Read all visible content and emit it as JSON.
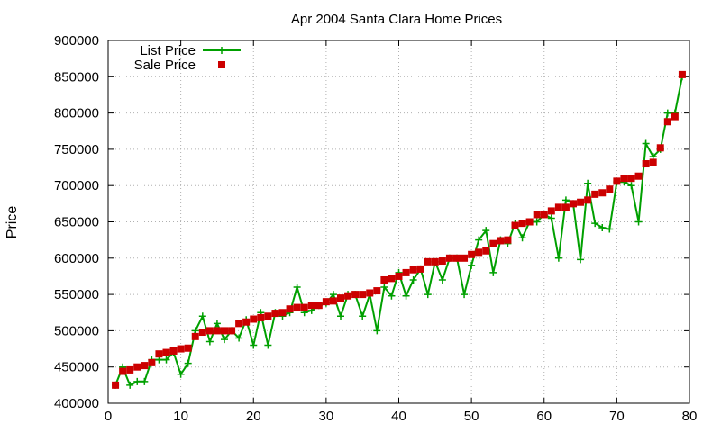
{
  "chart_data": {
    "type": "line",
    "title": "Apr 2004 Santa Clara Home Prices",
    "ylabel": "Price",
    "xlabel": "",
    "xlim": [
      0,
      80
    ],
    "ylim": [
      400000,
      900000
    ],
    "xticks": [
      0,
      10,
      20,
      30,
      40,
      50,
      60,
      70,
      80
    ],
    "yticks": [
      400000,
      450000,
      500000,
      550000,
      600000,
      650000,
      700000,
      750000,
      800000,
      850000,
      900000
    ],
    "grid": true,
    "legend_position": "top-left",
    "series": [
      {
        "name": "List Price",
        "style": "line-plus",
        "color": "#00a000",
        "x": [
          1,
          2,
          3,
          4,
          5,
          6,
          7,
          8,
          9,
          10,
          11,
          12,
          13,
          14,
          15,
          16,
          17,
          18,
          19,
          20,
          21,
          22,
          23,
          24,
          25,
          26,
          27,
          28,
          29,
          30,
          31,
          32,
          33,
          34,
          35,
          36,
          37,
          38,
          39,
          40,
          41,
          42,
          43,
          44,
          45,
          46,
          47,
          48,
          49,
          50,
          51,
          52,
          53,
          54,
          55,
          56,
          57,
          58,
          59,
          60,
          61,
          62,
          63,
          64,
          65,
          66,
          67,
          68,
          69,
          70,
          71,
          72,
          73,
          74,
          75,
          76,
          77,
          78,
          79
        ],
        "values": [
          425000,
          450000,
          425000,
          430000,
          430000,
          460000,
          460000,
          460000,
          470000,
          440000,
          455000,
          500000,
          520000,
          485000,
          510000,
          488000,
          500000,
          490000,
          515000,
          480000,
          525000,
          480000,
          525000,
          520000,
          525000,
          560000,
          525000,
          528000,
          535000,
          538000,
          550000,
          520000,
          550000,
          550000,
          520000,
          550000,
          500000,
          560000,
          548000,
          580000,
          548000,
          570000,
          585000,
          550000,
          595000,
          570000,
          600000,
          600000,
          550000,
          590000,
          625000,
          638000,
          580000,
          625000,
          620000,
          648000,
          628000,
          650000,
          650000,
          660000,
          655000,
          600000,
          680000,
          675000,
          598000,
          703000,
          648000,
          642000,
          640000,
          705000,
          705000,
          700000,
          650000,
          758000,
          740000,
          750000,
          800000,
          800000,
          850000
        ]
      },
      {
        "name": "Sale Price",
        "style": "square-points",
        "color": "#cc0000",
        "x": [
          1,
          2,
          3,
          4,
          5,
          6,
          7,
          8,
          9,
          10,
          11,
          12,
          13,
          14,
          15,
          16,
          17,
          18,
          19,
          20,
          21,
          22,
          23,
          24,
          25,
          26,
          27,
          28,
          29,
          30,
          31,
          32,
          33,
          34,
          35,
          36,
          37,
          38,
          39,
          40,
          41,
          42,
          43,
          44,
          45,
          46,
          47,
          48,
          49,
          50,
          51,
          52,
          53,
          54,
          55,
          56,
          57,
          58,
          59,
          60,
          61,
          62,
          63,
          64,
          65,
          66,
          67,
          68,
          69,
          70,
          71,
          72,
          73,
          74,
          75,
          76,
          77,
          78,
          79
        ],
        "values": [
          425000,
          444000,
          446000,
          450000,
          452000,
          456000,
          468000,
          470000,
          472000,
          475000,
          476000,
          492000,
          498000,
          500000,
          500000,
          500000,
          500000,
          510000,
          512000,
          516000,
          518000,
          520000,
          524000,
          525000,
          530000,
          532000,
          532000,
          535000,
          535000,
          540000,
          541000,
          545000,
          548000,
          550000,
          550000,
          552000,
          555000,
          570000,
          572000,
          575000,
          580000,
          584000,
          585000,
          595000,
          595000,
          596000,
          600000,
          600000,
          600000,
          605000,
          608000,
          610000,
          620000,
          624000,
          625000,
          645000,
          648000,
          650000,
          660000,
          660000,
          665000,
          670000,
          670000,
          675000,
          677000,
          680000,
          688000,
          690000,
          695000,
          706000,
          710000,
          710000,
          713000,
          730000,
          732000,
          752000,
          788000,
          795000,
          853000
        ]
      }
    ]
  }
}
